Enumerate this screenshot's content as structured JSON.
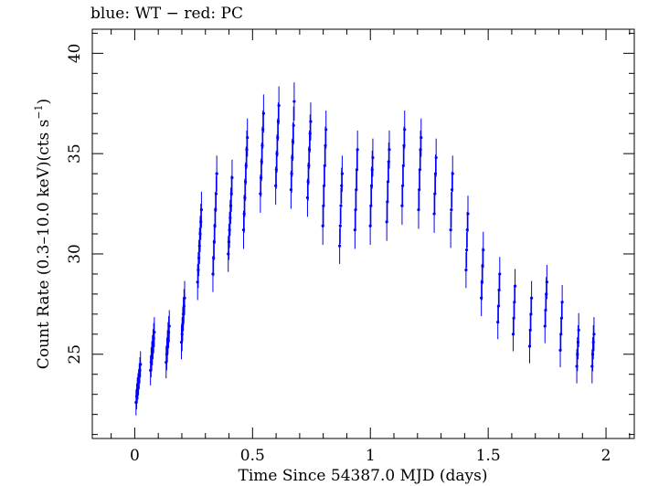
{
  "chart_data": {
    "type": "scatter",
    "title": "blue: WT − red: PC",
    "xlabel": "Time Since 54387.0 MJD (days)",
    "ylabel_main": "Count Rate (0.3–10.0 keV)(cts s",
    "ylabel_sup": "−1",
    "ylabel_close": ")",
    "xlim": [
      -0.18,
      2.12
    ],
    "ylim": [
      20.8,
      41.2
    ],
    "x_ticks": [
      0,
      0.5,
      1,
      1.5,
      2
    ],
    "x_tick_labels": [
      "0",
      "0.5",
      "1",
      "1.5",
      "2"
    ],
    "y_ticks": [
      25,
      30,
      35,
      40
    ],
    "y_tick_labels": [
      "25",
      "30",
      "35",
      "40"
    ],
    "grid": false,
    "legend": "none",
    "series": [
      {
        "color": "#0000ff",
        "groups": [
          {
            "x": 0.015,
            "y": [
              22.6,
              22.9,
              23.2,
              23.4,
              23.6,
              23.9,
              24.2,
              24.5
            ],
            "err": 0.65
          },
          {
            "x": 0.075,
            "y": [
              24.2,
              24.6,
              24.9,
              25.2,
              25.5,
              25.8,
              26.1
            ],
            "err": 0.75
          },
          {
            "x": 0.14,
            "y": [
              24.6,
              25.0,
              25.4,
              25.8,
              26.1,
              26.4
            ],
            "err": 0.8
          },
          {
            "x": 0.205,
            "y": [
              25.6,
              26.0,
              26.5,
              27.0,
              27.4,
              27.8
            ],
            "err": 0.85
          },
          {
            "x": 0.275,
            "y": [
              28.6,
              29.2,
              29.8,
              30.4,
              31.0,
              31.6,
              32.2
            ],
            "err": 0.9
          },
          {
            "x": 0.34,
            "y": [
              29.0,
              29.8,
              30.6,
              31.4,
              32.2,
              33.0,
              34.0
            ],
            "err": 0.9
          },
          {
            "x": 0.405,
            "y": [
              30.0,
              30.6,
              31.2,
              31.8,
              32.4,
              33.0,
              33.8
            ],
            "err": 0.9
          },
          {
            "x": 0.47,
            "y": [
              31.2,
              32.0,
              32.8,
              33.6,
              34.4,
              35.2,
              35.8
            ],
            "err": 0.95
          },
          {
            "x": 0.54,
            "y": [
              33.0,
              33.8,
              34.6,
              35.4,
              36.2,
              37.0
            ],
            "err": 0.95
          },
          {
            "x": 0.605,
            "y": [
              33.4,
              34.2,
              35.0,
              35.8,
              36.6,
              37.4
            ],
            "err": 0.95
          },
          {
            "x": 0.67,
            "y": [
              33.2,
              34.0,
              34.8,
              35.6,
              36.4,
              37.6
            ],
            "err": 0.95
          },
          {
            "x": 0.74,
            "y": [
              32.8,
              33.6,
              34.4,
              35.2,
              36.0,
              36.6
            ],
            "err": 0.95
          },
          {
            "x": 0.805,
            "y": [
              31.4,
              32.4,
              33.4,
              34.4,
              35.4,
              36.2
            ],
            "err": 0.95
          },
          {
            "x": 0.875,
            "y": [
              30.4,
              31.4,
              32.4,
              33.4,
              34.0
            ],
            "err": 0.9
          },
          {
            "x": 0.94,
            "y": [
              31.2,
              32.2,
              33.2,
              34.2,
              35.2
            ],
            "err": 0.95
          },
          {
            "x": 1.005,
            "y": [
              31.4,
              32.4,
              33.4,
              34.2,
              34.8
            ],
            "err": 0.95
          },
          {
            "x": 1.075,
            "y": [
              31.6,
              32.6,
              33.6,
              34.6,
              35.2
            ],
            "err": 0.95
          },
          {
            "x": 1.14,
            "y": [
              32.4,
              33.4,
              34.4,
              35.4,
              36.2
            ],
            "err": 0.95
          },
          {
            "x": 1.21,
            "y": [
              32.2,
              33.2,
              34.2,
              35.2,
              35.8
            ],
            "err": 0.95
          },
          {
            "x": 1.275,
            "y": [
              32.0,
              33.0,
              34.0,
              34.8
            ],
            "err": 0.95
          },
          {
            "x": 1.345,
            "y": [
              31.2,
              32.2,
              33.2,
              34.0
            ],
            "err": 0.9
          },
          {
            "x": 1.41,
            "y": [
              29.2,
              30.2,
              31.2,
              32.0
            ],
            "err": 0.9
          },
          {
            "x": 1.475,
            "y": [
              27.8,
              28.6,
              29.4,
              30.2
            ],
            "err": 0.9
          },
          {
            "x": 1.545,
            "y": [
              26.6,
              27.4,
              28.2,
              29.0
            ],
            "err": 0.85
          },
          {
            "x": 1.61,
            "y": [
              26.0,
              26.8,
              27.6,
              28.4
            ],
            "err": 0.85
          },
          {
            "x": 1.68,
            "y": [
              25.4,
              26.2,
              27.0,
              27.8
            ],
            "err": 0.85
          },
          {
            "x": 1.745,
            "y": [
              26.4,
              27.2,
              28.0,
              28.6
            ],
            "err": 0.85
          },
          {
            "x": 1.81,
            "y": [
              25.2,
              26.0,
              26.8,
              27.6
            ],
            "err": 0.85
          },
          {
            "x": 1.88,
            "y": [
              24.4,
              25.0,
              25.6,
              26.2
            ],
            "err": 0.85
          },
          {
            "x": 1.945,
            "y": [
              24.4,
              25.0,
              25.6,
              26.0
            ],
            "err": 0.85
          }
        ]
      }
    ]
  }
}
